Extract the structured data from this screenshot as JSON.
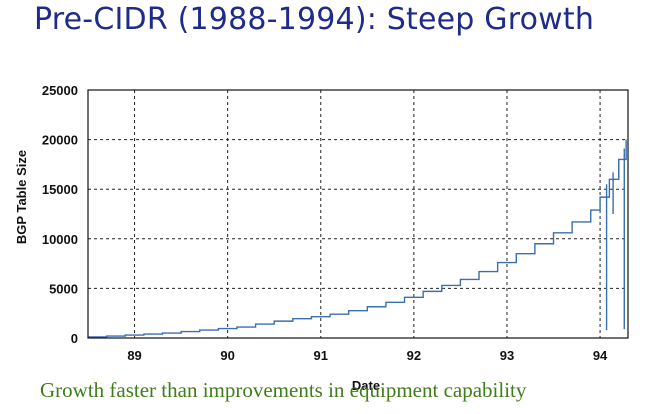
{
  "title": "Pre-CIDR (1988-1994): Steep Growth",
  "caption": "Growth faster than improvements in equipment capability",
  "chart_data": {
    "type": "line",
    "xlabel": "Date",
    "ylabel": "BGP Table Size",
    "xlim": [
      88.5,
      94.3
    ],
    "ylim": [
      0,
      25000
    ],
    "xticks": [
      "89",
      "90",
      "91",
      "92",
      "93",
      "94"
    ],
    "yticks": [
      "0",
      "5000",
      "10000",
      "15000",
      "20000",
      "25000"
    ],
    "grid": true,
    "line_color": "#3a6fb0",
    "series": [
      {
        "values_x": [
          88.5,
          88.7,
          88.9,
          89.1,
          89.3,
          89.5,
          89.7,
          89.9,
          90.1,
          90.3,
          90.5,
          90.7,
          90.9,
          91.1,
          91.3,
          91.5,
          91.7,
          91.9,
          92.1,
          92.3,
          92.5,
          92.7,
          92.9,
          93.1,
          93.3,
          93.5,
          93.7,
          93.9,
          94.0,
          94.1,
          94.2,
          94.28
        ],
        "values_y": [
          100,
          200,
          300,
          400,
          500,
          650,
          800,
          950,
          1100,
          1400,
          1700,
          1950,
          2150,
          2400,
          2750,
          3150,
          3600,
          4100,
          4700,
          5300,
          5900,
          6700,
          7600,
          8500,
          9500,
          10600,
          11700,
          12900,
          14200,
          16000,
          18000,
          20000
        ]
      }
    ],
    "dips": [
      {
        "x": 94.07,
        "y": 800
      },
      {
        "x": 94.14,
        "y": 12500
      },
      {
        "x": 94.2,
        "y": 16000
      },
      {
        "x": 94.26,
        "y": 900
      }
    ]
  }
}
